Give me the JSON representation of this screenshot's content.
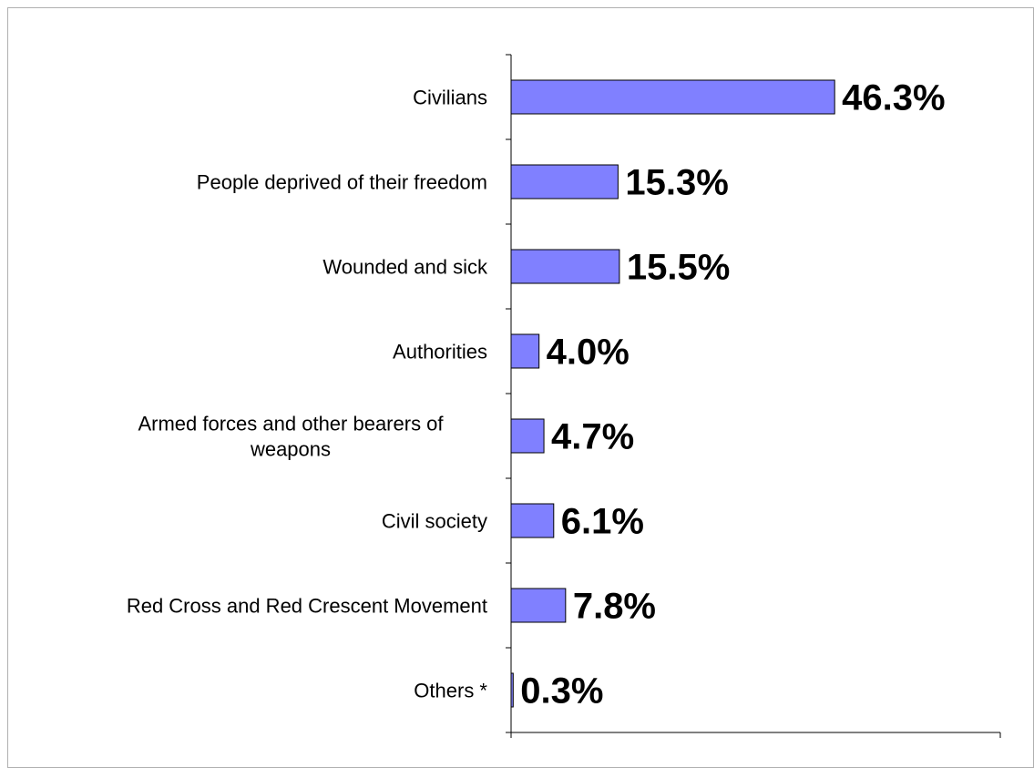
{
  "chart_data": {
    "type": "bar",
    "orientation": "horizontal",
    "categories": [
      [
        "Civilians"
      ],
      [
        "People deprived of their freedom"
      ],
      [
        "Wounded and sick"
      ],
      [
        "Authorities"
      ],
      [
        "Armed forces and other bearers of",
        "weapons"
      ],
      [
        "Civil society"
      ],
      [
        "Red Cross and Red Crescent Movement"
      ],
      [
        "Others *"
      ]
    ],
    "values": [
      46.3,
      15.3,
      15.5,
      4.0,
      4.7,
      6.1,
      7.8,
      0.3
    ],
    "data_labels": [
      "46.3%",
      "15.3%",
      "15.5%",
      "4.0%",
      "4.7%",
      "6.1%",
      "7.8%",
      "0.3%"
    ],
    "xlim": [
      0,
      70
    ],
    "title": "",
    "xlabel": "",
    "ylabel": "",
    "grid": false,
    "legend": "none",
    "bar_color": "#8080ff",
    "bar_edge_color": "#000000"
  }
}
